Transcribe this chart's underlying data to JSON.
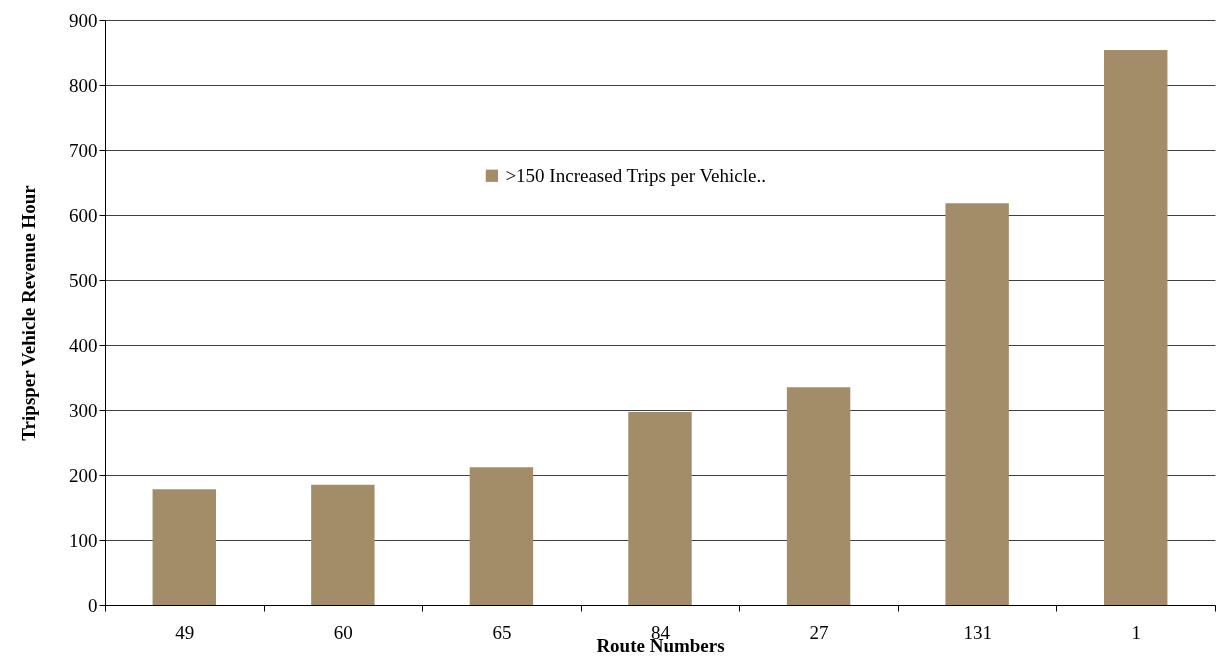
{
  "chart_data": {
    "type": "bar",
    "xlabel": "Route Numbers",
    "ylabel": "Tripsper Vehicle Revenue Hour",
    "categories": [
      "49",
      "60",
      "65",
      "84",
      "27",
      "131",
      "1"
    ],
    "series": [
      {
        "name": ">150 Increased Trips per Vehicle..",
        "color": "#a38d69",
        "values": [
          178,
          185,
          212,
          297,
          335,
          618,
          854
        ]
      }
    ],
    "ylim": [
      0,
      900
    ],
    "yticks": [
      0,
      100,
      200,
      300,
      400,
      500,
      600,
      700,
      800,
      900
    ],
    "grid": "y",
    "legend": "top"
  }
}
